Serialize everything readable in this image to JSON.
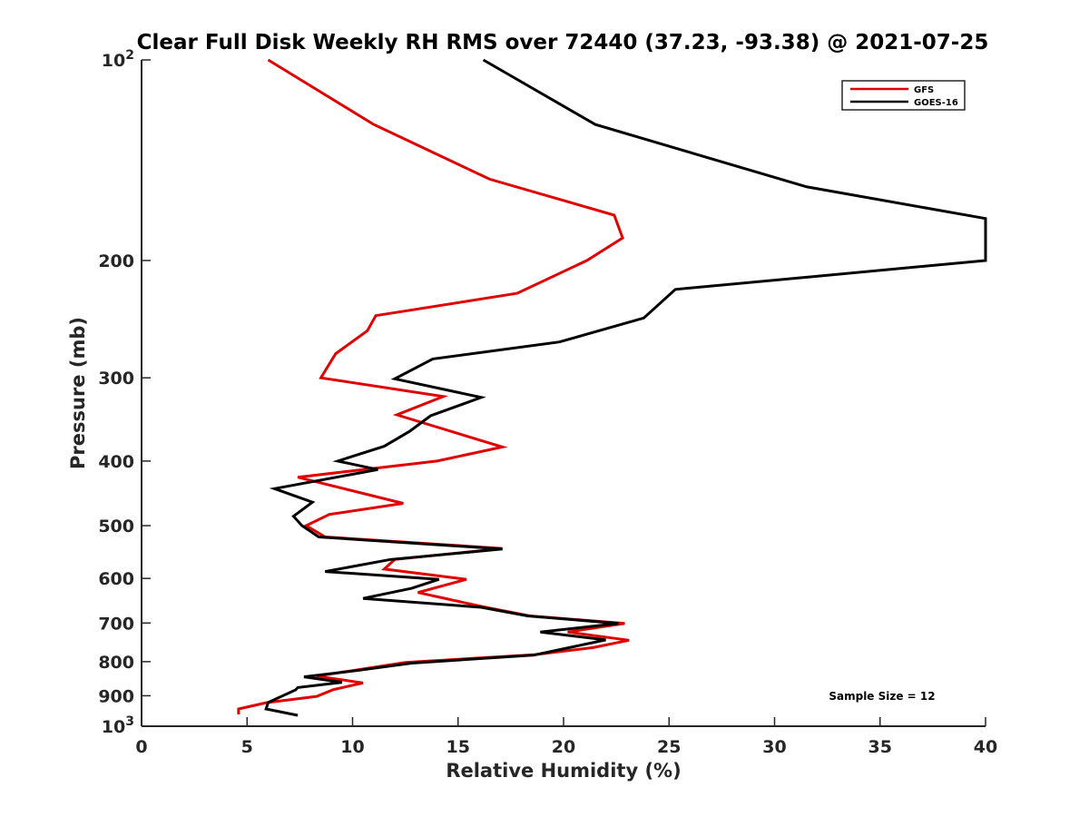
{
  "chart_data": {
    "type": "line",
    "title": "Clear Full Disk Weekly RH RMS over 72440 (37.23, -93.38) @ 2021-07-25",
    "xlabel": "Relative Humidity (%)",
    "ylabel": "Pressure (mb)",
    "xlim": [
      0,
      40
    ],
    "ylim": [
      100,
      1000
    ],
    "y_scale": "log",
    "y_reversed": true,
    "grid": false,
    "legend_position": "top-right",
    "x_ticks": [
      {
        "value": 0,
        "label": "0"
      },
      {
        "value": 5,
        "label": "5"
      },
      {
        "value": 10,
        "label": "10"
      },
      {
        "value": 15,
        "label": "15"
      },
      {
        "value": 20,
        "label": "20"
      },
      {
        "value": 25,
        "label": "25"
      },
      {
        "value": 30,
        "label": "30"
      },
      {
        "value": 35,
        "label": "35"
      },
      {
        "value": 40,
        "label": "40"
      }
    ],
    "y_ticks": [
      {
        "value": 100,
        "label": "10",
        "sup": "2"
      },
      {
        "value": 200,
        "label": "200",
        "sup": ""
      },
      {
        "value": 300,
        "label": "300",
        "sup": ""
      },
      {
        "value": 400,
        "label": "400",
        "sup": ""
      },
      {
        "value": 500,
        "label": "500",
        "sup": ""
      },
      {
        "value": 600,
        "label": "600",
        "sup": ""
      },
      {
        "value": 700,
        "label": "700",
        "sup": ""
      },
      {
        "value": 800,
        "label": "800",
        "sup": ""
      },
      {
        "value": 900,
        "label": "900",
        "sup": ""
      },
      {
        "value": 1000,
        "label": "10",
        "sup": "3"
      }
    ],
    "series": [
      {
        "name": "GFS",
        "color": "#e00000",
        "points": [
          [
            6.0,
            100
          ],
          [
            11.0,
            125
          ],
          [
            16.5,
            151
          ],
          [
            22.4,
            171
          ],
          [
            22.8,
            185
          ],
          [
            21.1,
            200
          ],
          [
            17.8,
            224
          ],
          [
            11.1,
            242
          ],
          [
            10.7,
            255
          ],
          [
            9.2,
            276
          ],
          [
            8.5,
            300
          ],
          [
            14.3,
            320
          ],
          [
            12.1,
            341
          ],
          [
            17.1,
            381
          ],
          [
            14.0,
            400
          ],
          [
            7.4,
            423
          ],
          [
            12.4,
            463
          ],
          [
            8.9,
            481
          ],
          [
            7.8,
            500
          ],
          [
            8.7,
            520
          ],
          [
            17.1,
            541
          ],
          [
            12.0,
            562
          ],
          [
            11.5,
            581
          ],
          [
            15.4,
            602
          ],
          [
            13.1,
            630
          ],
          [
            16.2,
            662
          ],
          [
            18.4,
            683
          ],
          [
            22.9,
            701
          ],
          [
            20.2,
            722
          ],
          [
            23.1,
            743
          ],
          [
            21.4,
            762
          ],
          [
            18.6,
            781
          ],
          [
            12.5,
            802
          ],
          [
            8.3,
            841
          ],
          [
            10.5,
            861
          ],
          [
            9.1,
            881
          ],
          [
            8.3,
            902
          ],
          [
            5.9,
            922
          ],
          [
            4.6,
            942
          ],
          [
            4.6,
            960
          ]
        ]
      },
      {
        "name": "GOES-16",
        "color": "#000000",
        "points": [
          [
            16.2,
            100
          ],
          [
            21.5,
            125
          ],
          [
            31.5,
            155
          ],
          [
            40.0,
            173
          ],
          [
            40.0,
            200
          ],
          [
            25.3,
            221
          ],
          [
            23.8,
            244
          ],
          [
            19.8,
            265
          ],
          [
            13.8,
            281
          ],
          [
            12.0,
            301
          ],
          [
            16.1,
            321
          ],
          [
            13.7,
            342
          ],
          [
            12.7,
            361
          ],
          [
            11.5,
            380
          ],
          [
            9.3,
            400
          ],
          [
            11.2,
            412
          ],
          [
            6.3,
            440
          ],
          [
            8.1,
            461
          ],
          [
            7.2,
            484
          ],
          [
            7.6,
            500
          ],
          [
            8.4,
            520
          ],
          [
            17.1,
            542
          ],
          [
            11.8,
            562
          ],
          [
            8.7,
            586
          ],
          [
            14.1,
            602
          ],
          [
            12.8,
            621
          ],
          [
            10.5,
            643
          ],
          [
            16.1,
            663
          ],
          [
            18.3,
            683
          ],
          [
            22.6,
            701
          ],
          [
            18.9,
            722
          ],
          [
            22.0,
            742
          ],
          [
            18.6,
            782
          ],
          [
            12.8,
            804
          ],
          [
            10.2,
            825
          ],
          [
            7.7,
            843
          ],
          [
            9.5,
            859
          ],
          [
            7.4,
            875
          ],
          [
            7.3,
            882
          ],
          [
            6.0,
            921
          ],
          [
            5.9,
            942
          ],
          [
            7.4,
            963
          ]
        ]
      }
    ],
    "annotation": "Sample Size = 12"
  },
  "colors": {
    "gfs": "#e00000",
    "goes": "#000000",
    "axis": "#262626",
    "background": "#ffffff"
  }
}
